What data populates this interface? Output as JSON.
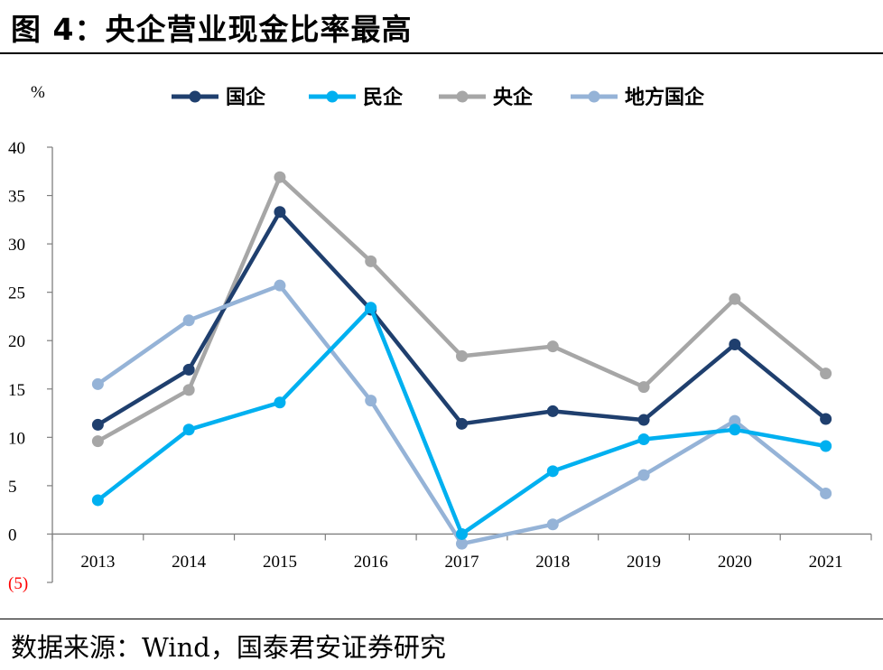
{
  "title": "图 4：央企营业现金比率最高",
  "source": "数据来源：Wind，国泰君安证券研究",
  "colors": {
    "guoqi": "#1f3f6e",
    "minqi": "#00b0f0",
    "yangqi": "#a6a6a6",
    "difang": "#95b3d7",
    "axis": "#7f7f7f",
    "negative_label": "#ff0000"
  },
  "chart_data": {
    "type": "line",
    "unit_label": "%",
    "categories": [
      "2013",
      "2014",
      "2015",
      "2016",
      "2017",
      "2018",
      "2019",
      "2020",
      "2021"
    ],
    "ylim": [
      -5,
      40
    ],
    "yticks": [
      {
        "value": 40,
        "label": "40"
      },
      {
        "value": 35,
        "label": "35"
      },
      {
        "value": 30,
        "label": "30"
      },
      {
        "value": 25,
        "label": "25"
      },
      {
        "value": 20,
        "label": "20"
      },
      {
        "value": 15,
        "label": "15"
      },
      {
        "value": 10,
        "label": "10"
      },
      {
        "value": 5,
        "label": "5"
      },
      {
        "value": 0,
        "label": "0"
      },
      {
        "value": -5,
        "label": "(5)"
      }
    ],
    "grid": false,
    "legend_position": "top",
    "series": [
      {
        "name": "国企",
        "color_key": "guoqi",
        "values": [
          11.3,
          17.0,
          33.3,
          23.2,
          11.4,
          12.7,
          11.8,
          19.6,
          11.9
        ]
      },
      {
        "name": "民企",
        "color_key": "minqi",
        "values": [
          3.5,
          10.8,
          13.6,
          23.4,
          0.0,
          6.5,
          9.8,
          10.8,
          9.1
        ]
      },
      {
        "name": "央企",
        "color_key": "yangqi",
        "values": [
          9.6,
          14.9,
          36.9,
          28.2,
          18.4,
          19.4,
          15.2,
          24.3,
          16.6
        ]
      },
      {
        "name": "地方国企",
        "color_key": "difang",
        "values": [
          15.5,
          22.1,
          25.7,
          13.8,
          -1.0,
          1.0,
          6.1,
          11.7,
          4.2
        ]
      }
    ]
  }
}
